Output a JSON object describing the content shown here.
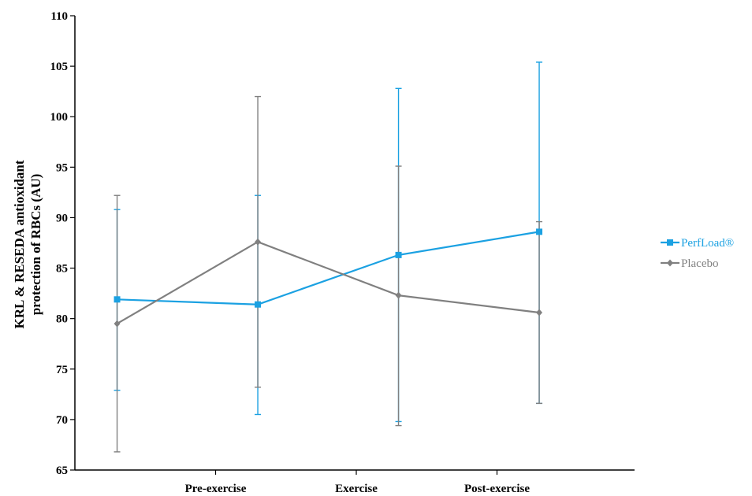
{
  "chart_data": {
    "type": "line",
    "title": "",
    "ylabel_lines": [
      "KRL & RESEDA antioxidant",
      "protection of RBCs (AU)"
    ],
    "xlabel": "",
    "ylim": [
      65,
      110
    ],
    "yticks": [
      65,
      70,
      75,
      80,
      85,
      90,
      95,
      100,
      105,
      110
    ],
    "categories": [
      "Pre-exercise",
      "Exercise",
      "Post-exercise"
    ],
    "grid": false,
    "legend_position": "right",
    "series": [
      {
        "name": "PerfLoad®",
        "color": "#1ba1e2",
        "marker": "square",
        "x": [
          0.3,
          1.3,
          2.3,
          3.3
        ],
        "values": [
          81.9,
          81.4,
          86.3,
          88.6
        ],
        "error_low": [
          72.9,
          70.5,
          69.8,
          71.6
        ],
        "error_high": [
          90.8,
          92.2,
          102.8,
          105.4
        ]
      },
      {
        "name": "Placebo",
        "color": "#808080",
        "marker": "diamond",
        "x": [
          0.3,
          1.3,
          2.3,
          3.3
        ],
        "values": [
          79.5,
          87.6,
          82.3,
          80.6
        ],
        "error_low": [
          66.8,
          73.2,
          69.4,
          71.6
        ],
        "error_high": [
          92.2,
          102.0,
          95.1,
          89.6
        ]
      }
    ]
  }
}
